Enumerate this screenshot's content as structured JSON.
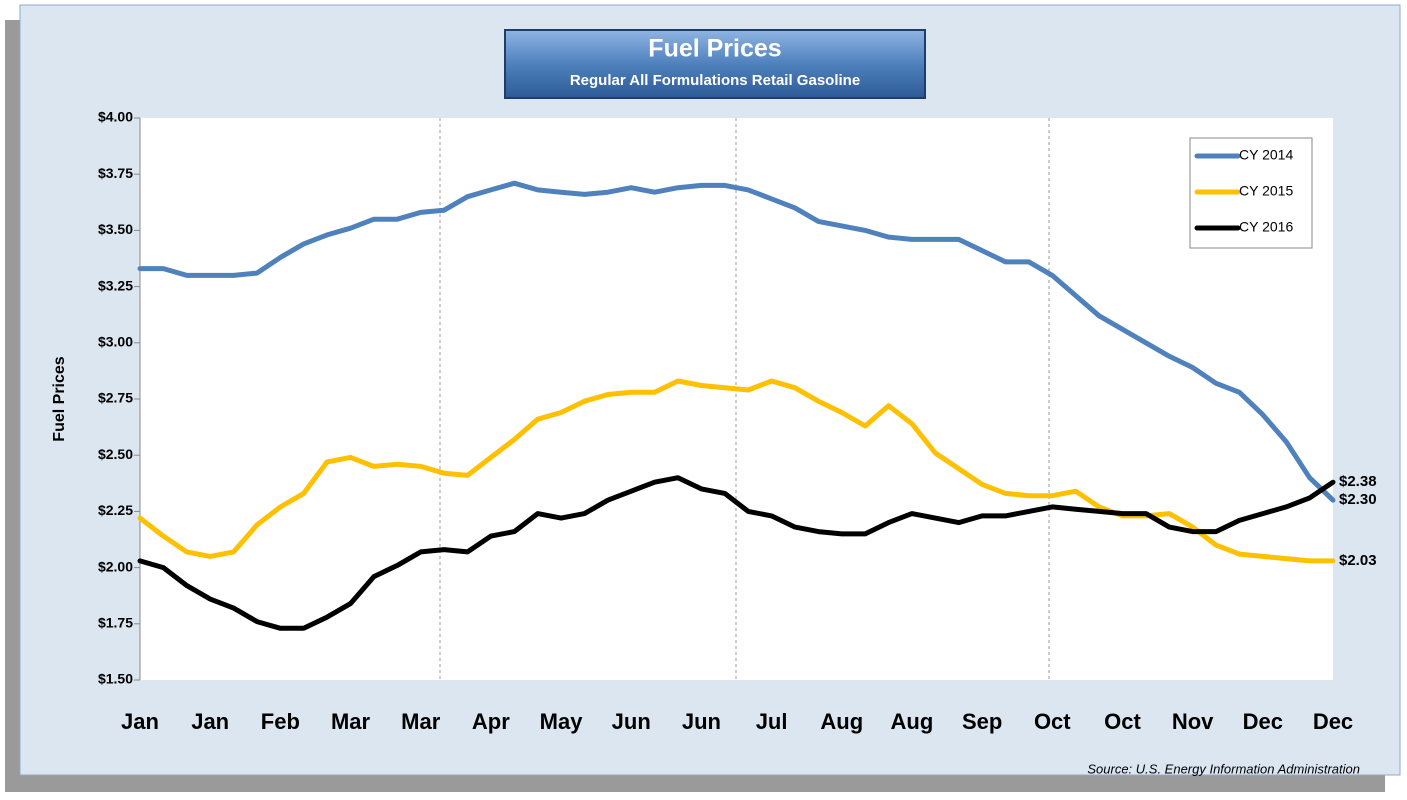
{
  "chart_data": {
    "type": "line",
    "title": "Fuel Prices",
    "subtitle": "Regular All Formulations Retail Gasoline",
    "y_label": "Fuel Prices",
    "source": "Source: U.S. Energy Information Administration",
    "categories": [
      "Jan",
      null,
      null,
      "Jan",
      null,
      null,
      "Feb",
      null,
      null,
      "Mar",
      null,
      null,
      "Mar",
      null,
      null,
      "Apr",
      null,
      null,
      "May",
      null,
      null,
      "Jun",
      null,
      null,
      "Jun",
      null,
      null,
      "Jul",
      null,
      null,
      "Aug",
      null,
      null,
      "Aug",
      null,
      null,
      "Sep",
      null,
      null,
      "Oct",
      null,
      null,
      "Oct",
      null,
      null,
      "Nov",
      null,
      null,
      "Dec",
      null,
      null,
      "Dec"
    ],
    "ylim": [
      1.5,
      4.0
    ],
    "yticks": [
      {
        "value": 1.5,
        "label": "$1.50"
      },
      {
        "value": 1.75,
        "label": "$1.75"
      },
      {
        "value": 2.0,
        "label": "$2.00"
      },
      {
        "value": 2.25,
        "label": "$2.25"
      },
      {
        "value": 2.5,
        "label": "$2.50"
      },
      {
        "value": 2.75,
        "label": "$2.75"
      },
      {
        "value": 3.0,
        "label": "$3.00"
      },
      {
        "value": 3.25,
        "label": "$3.25"
      },
      {
        "value": 3.5,
        "label": "$3.50"
      },
      {
        "value": 3.75,
        "label": "$3.75"
      },
      {
        "value": 4.0,
        "label": "$4.00"
      }
    ],
    "legend": "top-right",
    "series": [
      {
        "name": "CY 2014",
        "color": "#4f81bd",
        "values": [
          3.33,
          3.33,
          3.3,
          3.3,
          3.3,
          3.31,
          3.38,
          3.44,
          3.48,
          3.51,
          3.55,
          3.55,
          3.58,
          3.59,
          3.65,
          3.68,
          3.71,
          3.68,
          3.67,
          3.66,
          3.67,
          3.69,
          3.67,
          3.69,
          3.7,
          3.7,
          3.68,
          3.64,
          3.6,
          3.54,
          3.52,
          3.5,
          3.47,
          3.46,
          3.46,
          3.46,
          3.41,
          3.36,
          3.36,
          3.3,
          3.21,
          3.12,
          3.06,
          3.0,
          2.94,
          2.89,
          2.82,
          2.78,
          2.68,
          2.56,
          2.4,
          2.3
        ],
        "value_labels": [
          null,
          null,
          null,
          null,
          null,
          null,
          null,
          null,
          null,
          null,
          null,
          null,
          null,
          null,
          null,
          null,
          null,
          null,
          null,
          null,
          null,
          null,
          null,
          null,
          null,
          null,
          null,
          null,
          null,
          null,
          null,
          null,
          null,
          null,
          null,
          null,
          null,
          null,
          null,
          null,
          null,
          null,
          null,
          null,
          null,
          null,
          null,
          null,
          null,
          null,
          null,
          "$2.30"
        ]
      },
      {
        "name": "CY 2015",
        "color": "#ffc000",
        "values": [
          2.22,
          2.14,
          2.07,
          2.05,
          2.07,
          2.19,
          2.27,
          2.33,
          2.47,
          2.49,
          2.45,
          2.46,
          2.45,
          2.42,
          2.41,
          2.49,
          2.57,
          2.66,
          2.69,
          2.74,
          2.77,
          2.78,
          2.78,
          2.83,
          2.81,
          2.8,
          2.79,
          2.83,
          2.8,
          2.74,
          2.69,
          2.63,
          2.72,
          2.64,
          2.51,
          2.44,
          2.37,
          2.33,
          2.32,
          2.32,
          2.34,
          2.27,
          2.23,
          2.23,
          2.24,
          2.18,
          2.1,
          2.06,
          2.05,
          2.04,
          2.03,
          2.03
        ],
        "value_labels": [
          null,
          null,
          null,
          null,
          null,
          null,
          null,
          null,
          null,
          null,
          null,
          null,
          null,
          null,
          null,
          null,
          null,
          null,
          null,
          null,
          null,
          null,
          null,
          null,
          null,
          null,
          null,
          null,
          null,
          null,
          null,
          null,
          null,
          null,
          null,
          null,
          null,
          null,
          null,
          null,
          null,
          null,
          null,
          null,
          null,
          null,
          null,
          null,
          null,
          null,
          null,
          "$2.03"
        ]
      },
      {
        "name": "CY 2016",
        "color": "#000000",
        "values": [
          2.03,
          2.0,
          1.92,
          1.86,
          1.82,
          1.76,
          1.73,
          1.73,
          1.78,
          1.84,
          1.96,
          2.01,
          2.07,
          2.08,
          2.07,
          2.14,
          2.16,
          2.24,
          2.22,
          2.24,
          2.3,
          2.34,
          2.38,
          2.4,
          2.35,
          2.33,
          2.25,
          2.23,
          2.18,
          2.16,
          2.15,
          2.15,
          2.2,
          2.24,
          2.22,
          2.2,
          2.23,
          2.23,
          2.25,
          2.27,
          2.26,
          2.25,
          2.24,
          2.24,
          2.18,
          2.16,
          2.16,
          2.21,
          2.24,
          2.27,
          2.31,
          2.38
        ],
        "value_labels": [
          null,
          null,
          null,
          null,
          null,
          null,
          null,
          null,
          null,
          null,
          null,
          null,
          null,
          null,
          null,
          null,
          null,
          null,
          null,
          null,
          null,
          null,
          null,
          null,
          null,
          null,
          null,
          null,
          null,
          null,
          null,
          null,
          null,
          null,
          null,
          null,
          null,
          null,
          null,
          null,
          null,
          null,
          null,
          null,
          null,
          null,
          null,
          null,
          null,
          null,
          null,
          "$2.38"
        ]
      }
    ]
  }
}
